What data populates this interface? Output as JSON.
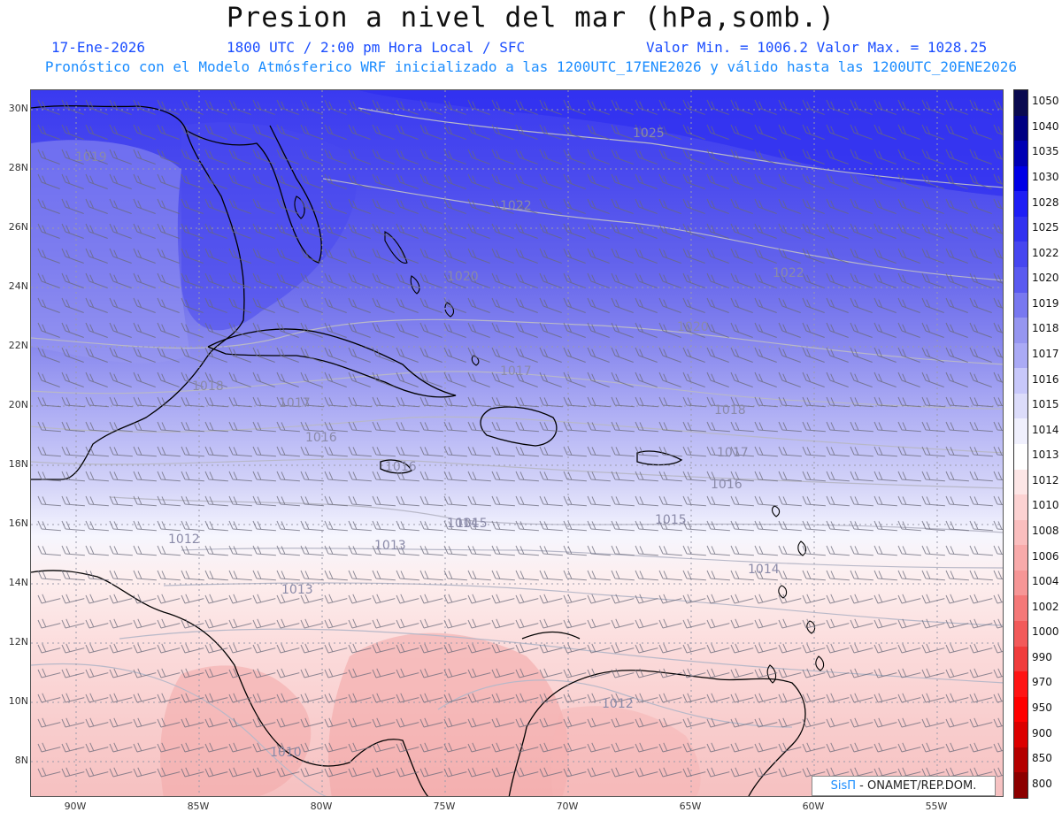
{
  "title": "Presion a nivel del mar (hPa,somb.)",
  "date": "17-Ene-2026",
  "time_label": "1800 UTC / 2:00 pm Hora Local / SFC",
  "min_max": "Valor Min. = 1006.2  Valor Max. = 1028.25",
  "forecast_note": "Pronóstico con el Modelo Atmósferico WRF inicializado a las 1200UTC_17ENE2026 y válido hasta las  1200UTC_20ENE2026",
  "lat_labels": [
    "30N",
    "28N",
    "26N",
    "24N",
    "22N",
    "20N",
    "18N",
    "16N",
    "14N",
    "12N",
    "10N",
    "8N"
  ],
  "lon_labels": [
    "90W",
    "85W",
    "80W",
    "75W",
    "70W",
    "65W",
    "60W",
    "55W"
  ],
  "contour_labels": [
    "1025",
    "1022",
    "1022",
    "1020",
    "1020",
    "1018",
    "1018",
    "1017",
    "1017",
    "1017",
    "1016",
    "1016",
    "1016",
    "1015",
    "1015",
    "1014",
    "1014",
    "1013",
    "1013",
    "1012",
    "1012",
    "1010",
    "1019"
  ],
  "colorbar": {
    "levels": [
      "1050",
      "1040",
      "1035",
      "1030",
      "1028",
      "1025",
      "1022",
      "1020",
      "1019",
      "1018",
      "1017",
      "1016",
      "1015",
      "1014",
      "1013",
      "1012",
      "1010",
      "1008",
      "1006",
      "1004",
      "1002",
      "1000",
      "990",
      "970",
      "950",
      "900",
      "850",
      "800"
    ],
    "colors": [
      "#0a0a50",
      "#000082",
      "#0000b4",
      "#0000e6",
      "#1e1ef5",
      "#3232f0",
      "#4646f0",
      "#5a5af0",
      "#7878f0",
      "#9696f0",
      "#aaaaf5",
      "#c8c8fa",
      "#dcdcfa",
      "#f0f0fd",
      "#ffffff",
      "#fde6e6",
      "#fcd2d2",
      "#fabebe",
      "#f8aaaa",
      "#f69696",
      "#f47878",
      "#f25a5a",
      "#f03c3c",
      "#ff1414",
      "#ff0000",
      "#dc0000",
      "#b40000",
      "#8c0000"
    ]
  },
  "credit": {
    "brand": "SisΠ",
    "text": " - ONAMET/REP.DOM."
  }
}
